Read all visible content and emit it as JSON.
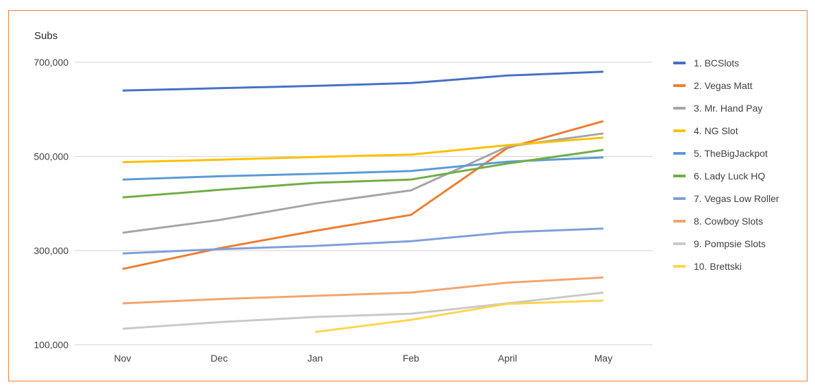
{
  "chart_data": {
    "type": "line",
    "title": "",
    "xlabel": "",
    "ylabel": "Subs",
    "categories": [
      "Nov",
      "Dec",
      "Jan",
      "Feb",
      "April",
      "May"
    ],
    "ylim": [
      100000,
      700000
    ],
    "yticks": [
      100000,
      300000,
      500000,
      700000
    ],
    "ytick_labels": [
      "100,000",
      "300,000",
      "500,000",
      "700,000"
    ],
    "grid": true,
    "legend_position": "right",
    "series": [
      {
        "name": "1. BCSlots",
        "color": "#4472C4",
        "values": [
          640000,
          645000,
          650000,
          656000,
          672000,
          680000
        ]
      },
      {
        "name": "2. Vegas Matt",
        "color": "#ED7D31",
        "values": [
          261000,
          305000,
          342000,
          376000,
          518000,
          575000
        ]
      },
      {
        "name": "3. Mr. Hand Pay",
        "color": "#A5A5A5",
        "values": [
          338000,
          365000,
          400000,
          428000,
          521000,
          549000
        ]
      },
      {
        "name": "4. NG Slot",
        "color": "#FFC000",
        "values": [
          488000,
          493000,
          499000,
          504000,
          524000,
          540000
        ]
      },
      {
        "name": "5. TheBigJackpot",
        "color": "#5B9BD5",
        "values": [
          451000,
          458000,
          463000,
          469000,
          489000,
          498000
        ]
      },
      {
        "name": "6. Lady Luck HQ",
        "color": "#70AD47",
        "values": [
          413000,
          429000,
          444000,
          451000,
          485000,
          514000
        ]
      },
      {
        "name": "7. Vegas Low Roller",
        "color": "#7F9FDA",
        "values": [
          294000,
          303000,
          310000,
          320000,
          339000,
          347000
        ]
      },
      {
        "name": "8. Cowboy Slots",
        "color": "#F4A46F",
        "values": [
          188000,
          197000,
          204000,
          211000,
          232000,
          243000
        ]
      },
      {
        "name": "9. Pompsie Slots",
        "color": "#C9C9C9",
        "values": [
          134000,
          148000,
          159000,
          166000,
          188000,
          211000
        ]
      },
      {
        "name": "10. Brettski",
        "color": "#FFD54F",
        "values": [
          null,
          null,
          127000,
          153000,
          187000,
          194000
        ]
      }
    ]
  }
}
